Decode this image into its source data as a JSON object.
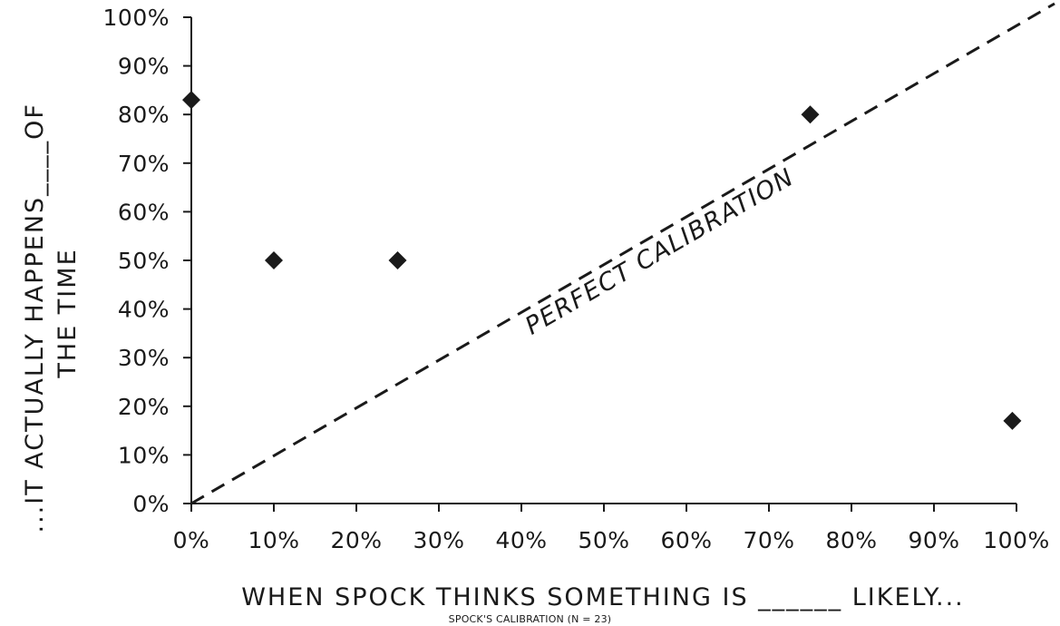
{
  "chart_data": {
    "type": "scatter",
    "caption": "SPOCK'S CALIBRATION (N = 23)",
    "xlabel": "WHEN SPOCK THINKS SOMETHING IS ______ LIKELY...",
    "ylabel_lines": [
      "...IT ACTUALLY HAPPENS____OF",
      "THE TIME"
    ],
    "xlim": [
      0,
      100
    ],
    "ylim": [
      0,
      100
    ],
    "x_ticks": [
      "0%",
      "10%",
      "20%",
      "30%",
      "40%",
      "50%",
      "60%",
      "70%",
      "80%",
      "90%",
      "100%"
    ],
    "y_ticks": [
      "0%",
      "10%",
      "20%",
      "30%",
      "40%",
      "50%",
      "60%",
      "70%",
      "80%",
      "90%",
      "100%"
    ],
    "grid": false,
    "points": [
      {
        "x": 0,
        "y": 83
      },
      {
        "x": 10,
        "y": 50
      },
      {
        "x": 25,
        "y": 50
      },
      {
        "x": 75,
        "y": 80
      },
      {
        "x": 99.5,
        "y": 17
      }
    ],
    "reference_line": {
      "label": "PERFECT CALIBRATION",
      "from": [
        0,
        0
      ],
      "to": [
        100,
        100
      ],
      "style": "dashed"
    },
    "marker_color": "#1a1a1a"
  }
}
